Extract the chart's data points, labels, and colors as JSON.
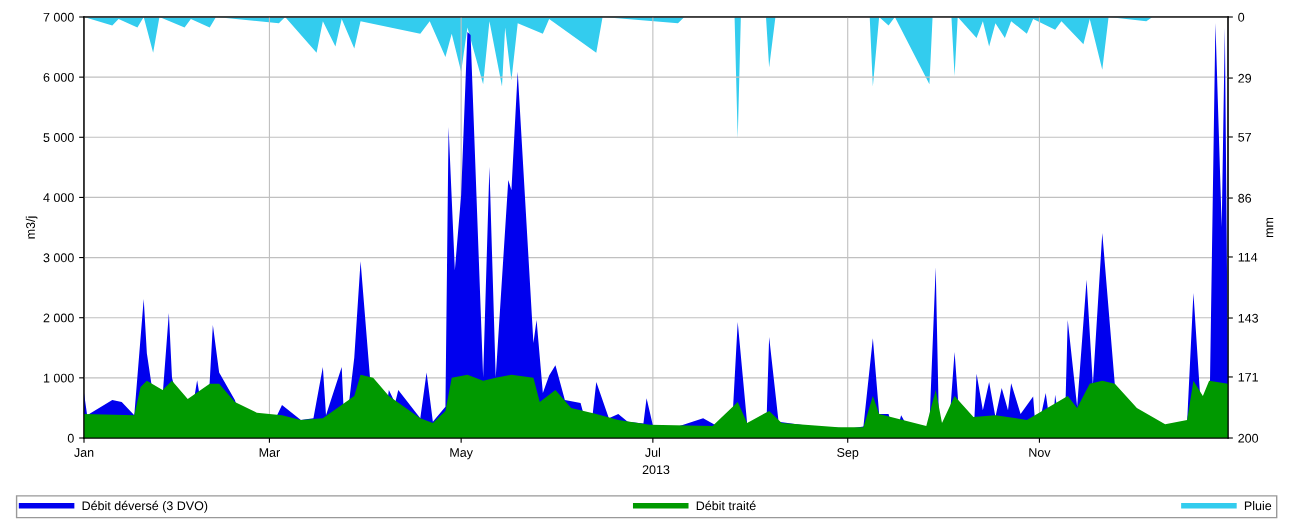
{
  "chart_data": {
    "type": "area",
    "xlabel": "2013",
    "ylabel": "m3/j",
    "y2label": "mm",
    "xlim": [
      "2013-01-01",
      "2013-12-31"
    ],
    "xticks": [
      {
        "value": "2013-01-01",
        "label": "Jan"
      },
      {
        "value": "2013-03-01",
        "label": "Mar"
      },
      {
        "value": "2013-05-01",
        "label": "May"
      },
      {
        "value": "2013-07-01",
        "label": "Jul"
      },
      {
        "value": "2013-09-01",
        "label": "Sep"
      },
      {
        "value": "2013-11-01",
        "label": "Nov"
      }
    ],
    "ylim": [
      0,
      7000
    ],
    "yticks": [
      0,
      {
        "value": 1000,
        "label": "1 000"
      },
      {
        "value": 2000,
        "label": "2 000"
      },
      {
        "value": 3000,
        "label": "3 000"
      },
      {
        "value": 4000,
        "label": "4 000"
      },
      {
        "value": 5000,
        "label": "5 000"
      },
      {
        "value": 6000,
        "label": "6 000"
      },
      {
        "value": 7000,
        "label": "7 000"
      }
    ],
    "y2lim": [
      200,
      0
    ],
    "y2ticks": [
      0,
      29,
      57,
      86,
      114,
      143,
      171,
      200
    ],
    "grid": true,
    "legend": "bottom",
    "series": [
      {
        "name": "Débit déversé (3 DVO)",
        "type": "area",
        "color": "#0000ee",
        "x": [
          "2013-01-01",
          "2013-01-02",
          "2013-01-10",
          "2013-01-13",
          "2013-01-17",
          "2013-01-20",
          "2013-01-21",
          "2013-01-25",
          "2013-01-28",
          "2013-01-29",
          "2013-02-03",
          "2013-02-06",
          "2013-02-09",
          "2013-02-11",
          "2013-02-13",
          "2013-02-18",
          "2013-02-22",
          "2013-02-28",
          "2013-03-05",
          "2013-03-11",
          "2013-03-15",
          "2013-03-18",
          "2013-03-19",
          "2013-03-24",
          "2013-03-25",
          "2013-03-28",
          "2013-03-30",
          "2013-04-02",
          "2013-04-06",
          "2013-04-08",
          "2013-04-10",
          "2013-04-11",
          "2013-04-18",
          "2013-04-20",
          "2013-04-22",
          "2013-04-26",
          "2013-04-27",
          "2013-04-29",
          "2013-05-01",
          "2013-05-03",
          "2013-05-04",
          "2013-05-08",
          "2013-05-10",
          "2013-05-12",
          "2013-05-16",
          "2013-05-17",
          "2013-05-19",
          "2013-05-24",
          "2013-05-25",
          "2013-05-27",
          "2013-05-29",
          "2013-05-31",
          "2013-06-03",
          "2013-06-08",
          "2013-06-11",
          "2013-06-13",
          "2013-06-17",
          "2013-06-20",
          "2013-06-23",
          "2013-06-28",
          "2013-06-29",
          "2013-07-01",
          "2013-07-09",
          "2013-07-17",
          "2013-07-21",
          "2013-07-24",
          "2013-07-26",
          "2013-07-28",
          "2013-07-31",
          "2013-08-06",
          "2013-08-07",
          "2013-08-10",
          "2013-08-21",
          "2013-09-02",
          "2013-09-06",
          "2013-09-09",
          "2013-09-11",
          "2013-09-14",
          "2013-09-16",
          "2013-09-18",
          "2013-09-22",
          "2013-09-27",
          "2013-09-29",
          "2013-09-30",
          "2013-10-03",
          "2013-10-05",
          "2013-10-07",
          "2013-10-11",
          "2013-10-12",
          "2013-10-14",
          "2013-10-16",
          "2013-10-18",
          "2013-10-20",
          "2013-10-22",
          "2013-10-23",
          "2013-10-26",
          "2013-10-30",
          "2013-10-31",
          "2013-11-03",
          "2013-11-05",
          "2013-11-06",
          "2013-11-08",
          "2013-11-09",
          "2013-11-10",
          "2013-11-13",
          "2013-11-16",
          "2013-11-18",
          "2013-11-21",
          "2013-11-25",
          "2013-11-29",
          "2013-12-04",
          "2013-12-11",
          "2013-12-18",
          "2013-12-20",
          "2013-12-23",
          "2013-12-25",
          "2013-12-27",
          "2013-12-29",
          "2013-12-30",
          "2013-12-31"
        ],
        "values": [
          750,
          380,
          630,
          600,
          380,
          2310,
          1410,
          null,
          2080,
          1000,
          null,
          960,
          null,
          1880,
          1090,
          630,
          null,
          null,
          550,
          300,
          330,
          1180,
          380,
          1180,
          null,
          1340,
          2940,
          1000,
          null,
          800,
          580,
          800,
          330,
          1090,
          270,
          520,
          5170,
          2790,
          4040,
          6750,
          6700,
          1010,
          4510,
          1010,
          4290,
          4120,
          6090,
          1580,
          1960,
          750,
          1040,
          1210,
          630,
          580,
          null,
          930,
          330,
          400,
          270,
          240,
          660,
          210,
          190,
          330,
          210,
          350,
          null,
          1930,
          240,
          null,
          1680,
          270,
          190,
          160,
          190,
          1660,
          400,
          400,
          null,
          380,
          null,
          210,
          2840,
          300,
          null,
          1430,
          null,
          null,
          1070,
          460,
          930,
          350,
          830,
          460,
          910,
          400,
          690,
          null,
          750,
          null,
          720,
          null,
          null,
          1960,
          520,
          2630,
          880,
          3410,
          880,
          null,
          380,
          210,
          270,
          2410,
          null,
          null,
          6900,
          3510,
          6820,
          880
        ]
      },
      {
        "name": "Débit traité",
        "type": "area",
        "color": "#009900",
        "x": [
          "2013-01-01",
          "2013-01-17",
          "2013-01-19",
          "2013-01-21",
          "2013-01-26",
          "2013-01-29",
          "2013-02-03",
          "2013-02-10",
          "2013-02-13",
          "2013-02-18",
          "2013-02-25",
          "2013-03-05",
          "2013-03-11",
          "2013-03-18",
          "2013-03-28",
          "2013-03-30",
          "2013-04-03",
          "2013-04-08",
          "2013-04-18",
          "2013-04-22",
          "2013-04-26",
          "2013-04-28",
          "2013-05-03",
          "2013-05-08",
          "2013-05-12",
          "2013-05-17",
          "2013-05-24",
          "2013-05-26",
          "2013-05-31",
          "2013-06-05",
          "2013-06-13",
          "2013-06-20",
          "2013-06-30",
          "2013-07-20",
          "2013-07-28",
          "2013-07-31",
          "2013-08-07",
          "2013-08-11",
          "2013-08-29",
          "2013-09-06",
          "2013-09-09",
          "2013-09-11",
          "2013-09-26",
          "2013-09-29",
          "2013-10-01",
          "2013-10-05",
          "2013-10-11",
          "2013-10-18",
          "2013-10-28",
          "2013-11-10",
          "2013-11-13",
          "2013-11-17",
          "2013-11-21",
          "2013-11-25",
          "2013-12-02",
          "2013-12-11",
          "2013-12-18",
          "2013-12-20",
          "2013-12-23",
          "2013-12-25",
          "2013-12-31"
        ],
        "values": [
          400,
          380,
          850,
          950,
          800,
          950,
          650,
          900,
          900,
          600,
          420,
          380,
          300,
          330,
          700,
          1050,
          1000,
          700,
          330,
          250,
          450,
          1000,
          1050,
          950,
          1000,
          1050,
          1000,
          600,
          800,
          500,
          400,
          300,
          220,
          200,
          600,
          250,
          450,
          250,
          180,
          180,
          700,
          400,
          200,
          800,
          250,
          700,
          350,
          380,
          300,
          700,
          500,
          900,
          950,
          900,
          500,
          230,
          300,
          950,
          700,
          950,
          900
        ]
      },
      {
        "name": "Pluie",
        "type": "area",
        "axis": "y2",
        "color": "#33ccee",
        "x": [
          "2013-01-01",
          "2013-01-10",
          "2013-01-12",
          "2013-01-18",
          "2013-01-20",
          "2013-01-23",
          "2013-01-25",
          "2013-02-02",
          "2013-02-04",
          "2013-02-10",
          "2013-02-12",
          "2013-03-04",
          "2013-03-06",
          "2013-03-16",
          "2013-03-18",
          "2013-03-22",
          "2013-03-24",
          "2013-03-28",
          "2013-03-30",
          "2013-04-18",
          "2013-04-21",
          "2013-04-26",
          "2013-04-28",
          "2013-05-01",
          "2013-05-03",
          "2013-05-08",
          "2013-05-10",
          "2013-05-14",
          "2013-05-15",
          "2013-05-17",
          "2013-05-19",
          "2013-05-27",
          "2013-05-29",
          "2013-06-13",
          "2013-06-15",
          "2013-07-09",
          "2013-07-11",
          "2013-07-27",
          "2013-07-28",
          "2013-07-29",
          "2013-08-06",
          "2013-08-07",
          "2013-08-09",
          "2013-09-08",
          "2013-09-09",
          "2013-09-11",
          "2013-09-14",
          "2013-09-16",
          "2013-09-27",
          "2013-09-28",
          "2013-10-04",
          "2013-10-05",
          "2013-10-06",
          "2013-10-12",
          "2013-10-14",
          "2013-10-16",
          "2013-10-18",
          "2013-10-21",
          "2013-10-23",
          "2013-10-28",
          "2013-10-30",
          "2013-11-06",
          "2013-11-08",
          "2013-11-15",
          "2013-11-17",
          "2013-11-21",
          "2013-11-23",
          "2013-12-05",
          "2013-12-07",
          "2013-12-31"
        ],
        "values": [
          0,
          4,
          1,
          5,
          0,
          17,
          0,
          5,
          1,
          5,
          0,
          3,
          0,
          17,
          2,
          14,
          1,
          15,
          2,
          8,
          2,
          19,
          8,
          26,
          5,
          32,
          2,
          33,
          5,
          30,
          3,
          8,
          1,
          17,
          0,
          3,
          0,
          0,
          58,
          0,
          0,
          24,
          0,
          0,
          33,
          0,
          4,
          0,
          32,
          0,
          0,
          28,
          0,
          10,
          2,
          14,
          3,
          10,
          2,
          8,
          1,
          6,
          2,
          13,
          1,
          25,
          0,
          2,
          0,
          0
        ]
      }
    ]
  }
}
